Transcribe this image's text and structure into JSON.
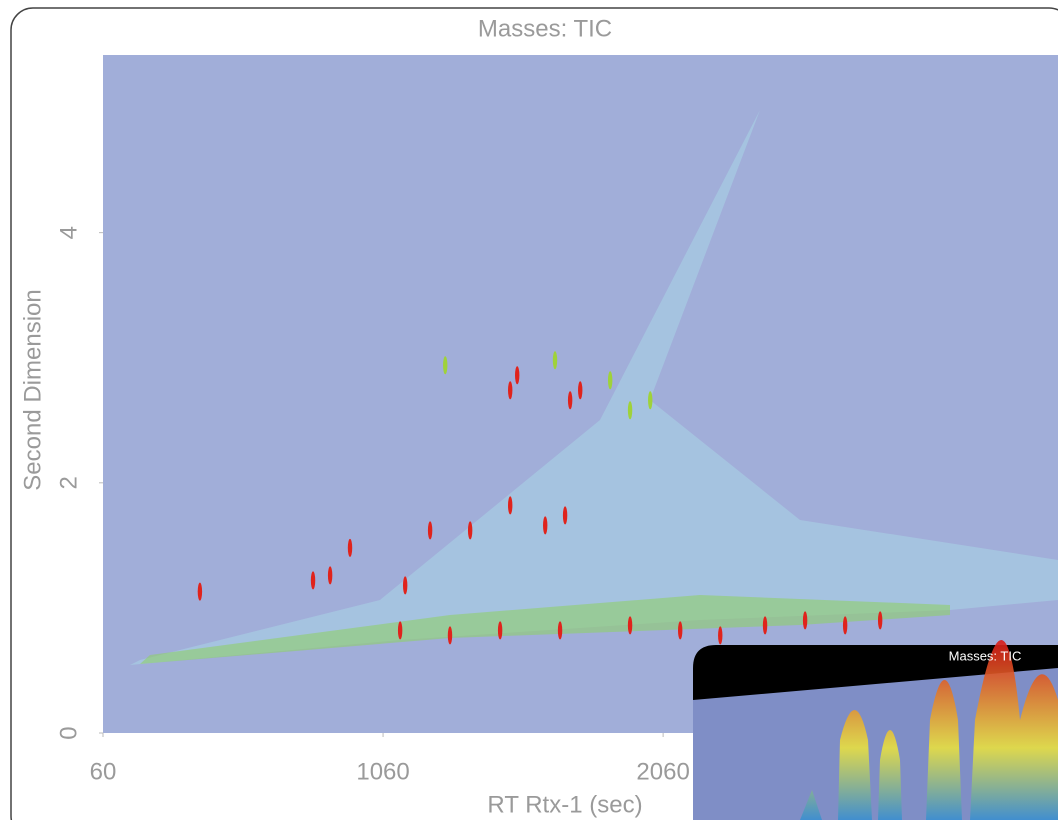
{
  "chart_data": {
    "type": "scatter",
    "title": "Masses: TIC",
    "xlabel": "RT Rtx-1 (sec)",
    "ylabel": "Second Dimension",
    "xlim": [
      60,
      3470
    ],
    "ylim": [
      0,
      5.42
    ],
    "xticks": [
      60,
      1060,
      2060
    ],
    "yticks": [
      0,
      2,
      4
    ],
    "background": "#a1aed9",
    "series": [
      {
        "color": "#e0231c",
        "x": [
          406,
          810,
          871,
          942,
          1139,
          1228,
          1371,
          1514,
          1514,
          1539,
          1728,
          1764,
          1639,
          1710,
          1942,
          2121,
          2264,
          2424,
          2567,
          2710,
          2835,
          1121,
          1299,
          1478,
          1692
        ],
        "y": [
          1.13,
          1.22,
          1.26,
          1.48,
          1.18,
          1.62,
          1.62,
          1.82,
          2.74,
          2.86,
          2.66,
          2.74,
          1.66,
          1.74,
          0.86,
          0.82,
          0.78,
          0.86,
          0.9,
          0.86,
          0.9,
          0.82,
          0.78,
          0.82,
          0.82
        ]
      },
      {
        "color": "#9fd23a",
        "x": [
          1282,
          1674,
          1871,
          1942,
          2014
        ],
        "y": [
          2.94,
          2.98,
          2.82,
          2.58,
          2.66
        ]
      }
    ],
    "inset_title": "Masses: TIC"
  }
}
